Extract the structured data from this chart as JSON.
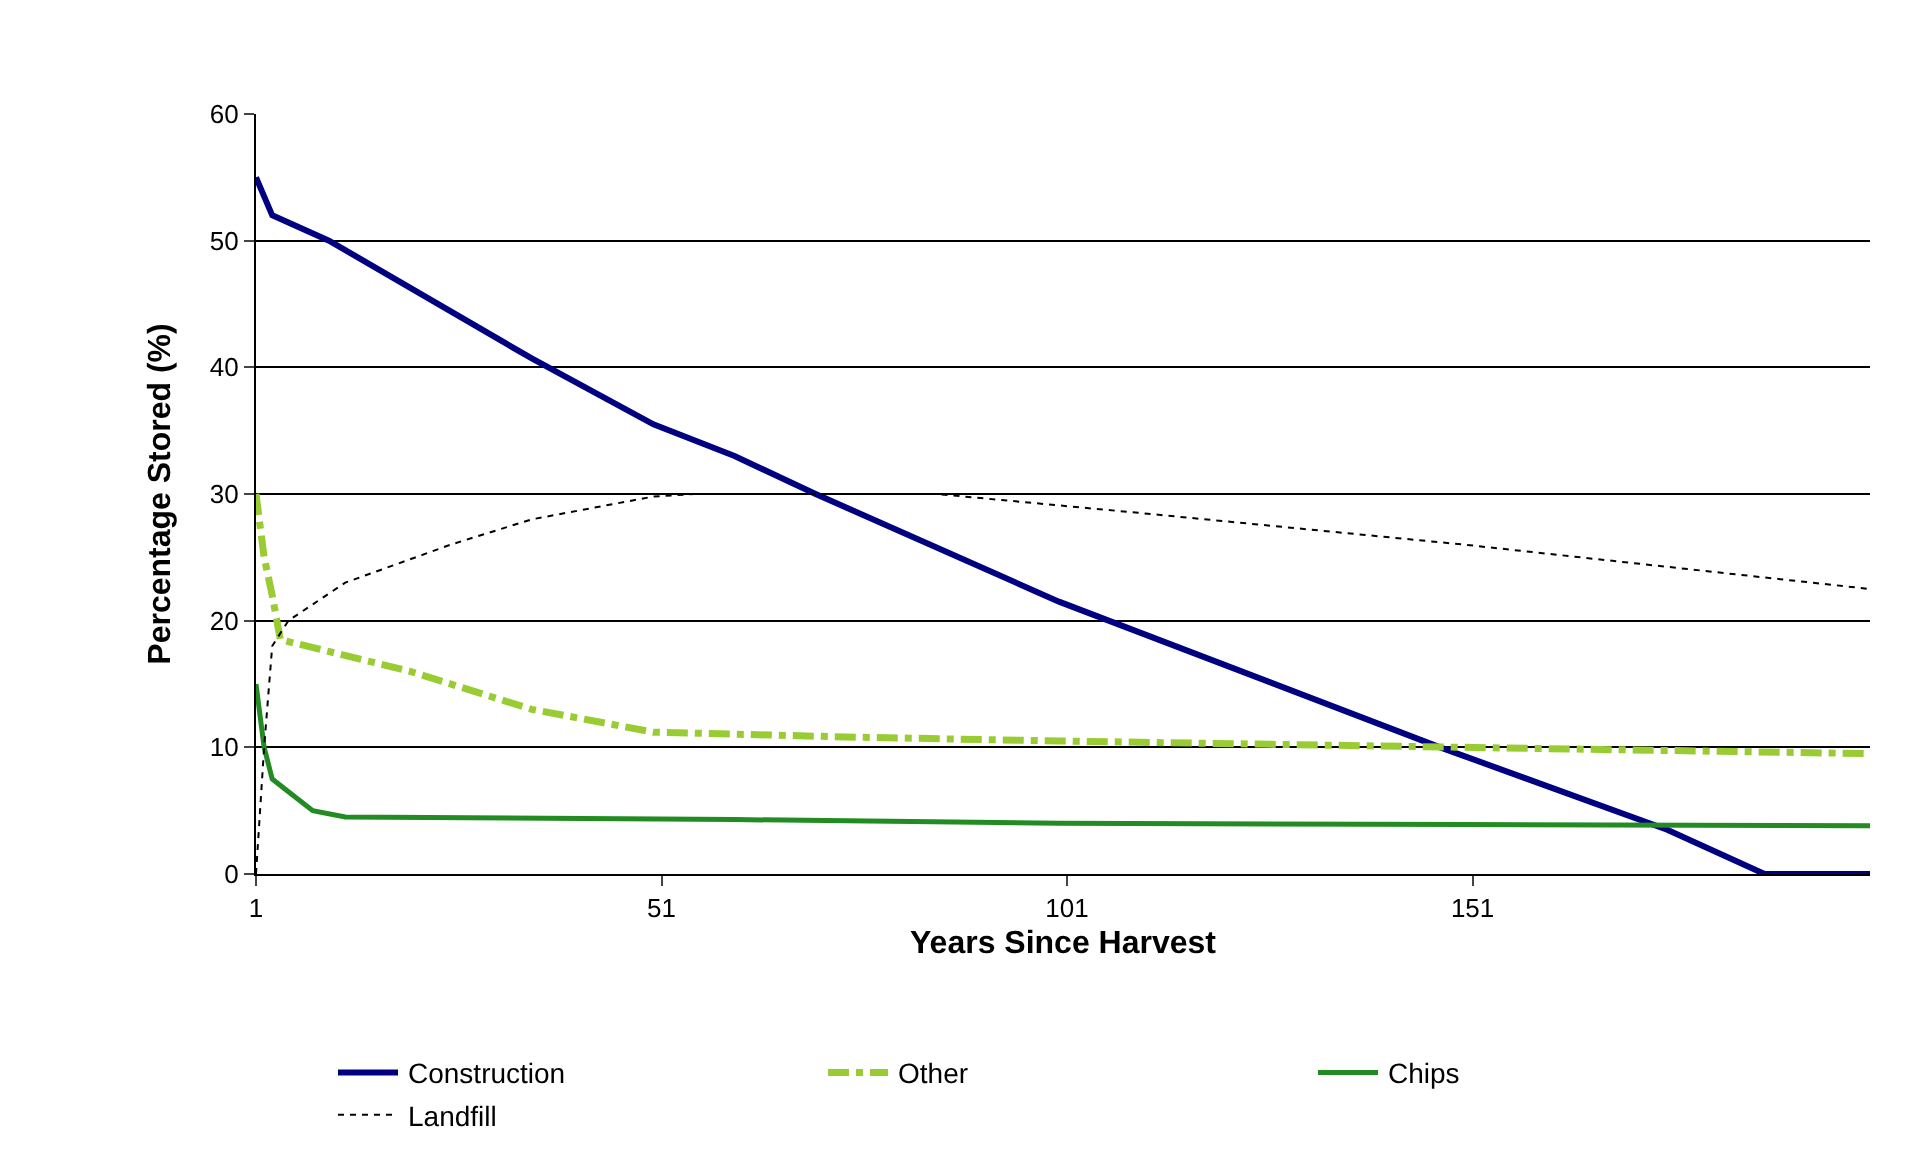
{
  "chart_data": {
    "type": "line",
    "xlabel": "Years Since Harvest",
    "ylabel": "Percentage Stored (%)",
    "xlim": [
      1,
      200
    ],
    "xticks": [
      1,
      51,
      101,
      151
    ],
    "ylim": [
      0,
      60
    ],
    "yticks": [
      0,
      10,
      20,
      30,
      40,
      50,
      60
    ],
    "grid": "y",
    "legend": "bottom",
    "series": [
      {
        "name": "Construction",
        "color": "#000080",
        "line_style": "solid",
        "x": [
          1,
          2,
          3,
          10,
          35,
          50,
          60,
          70,
          100,
          147,
          175,
          187,
          200
        ],
        "values": [
          55,
          53.5,
          52,
          50,
          40.7,
          35.5,
          33,
          30,
          21.5,
          10,
          3.5,
          0,
          0
        ]
      },
      {
        "name": "Other",
        "color": "#99cc33",
        "line_style": "dashed",
        "x": [
          1,
          2,
          3,
          4,
          20,
          35,
          50,
          75,
          100,
          150,
          200
        ],
        "values": [
          30,
          25,
          22,
          18.5,
          16,
          13,
          11.2,
          10.8,
          10.5,
          10,
          9.5
        ]
      },
      {
        "name": "Chips",
        "color": "#228b22",
        "line_style": "solid",
        "x": [
          1,
          2,
          3,
          5,
          8,
          12,
          60,
          100,
          150,
          200
        ],
        "values": [
          15,
          10,
          7.5,
          6.5,
          5,
          4.5,
          4.3,
          4,
          3.9,
          3.8
        ]
      },
      {
        "name": "Landfill",
        "color": "#000000",
        "line_style": "dotted",
        "x": [
          1,
          2,
          3,
          5,
          12,
          25,
          35,
          50,
          55,
          85,
          110,
          150,
          200
        ],
        "values": [
          0,
          10,
          18,
          20,
          23,
          26,
          28,
          29.8,
          30,
          30,
          28.5,
          26,
          22.5
        ]
      }
    ]
  }
}
